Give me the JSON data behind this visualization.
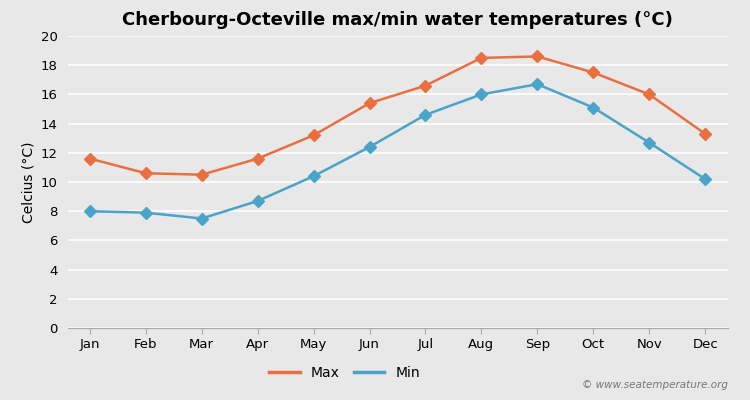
{
  "title": "Cherbourg-Octeville max/min water temperatures (°C)",
  "ylabel": "Celcius (°C)",
  "months": [
    "Jan",
    "Feb",
    "Mar",
    "Apr",
    "May",
    "Jun",
    "Jul",
    "Aug",
    "Sep",
    "Oct",
    "Nov",
    "Dec"
  ],
  "max_temps": [
    11.6,
    10.6,
    10.5,
    11.6,
    13.2,
    15.4,
    16.6,
    18.5,
    18.6,
    17.5,
    16.0,
    13.3
  ],
  "min_temps": [
    8.0,
    7.9,
    7.5,
    8.7,
    10.4,
    12.4,
    14.6,
    16.0,
    16.7,
    15.1,
    12.7,
    10.2
  ],
  "max_color": "#e87040",
  "min_color": "#4aa3c8",
  "background_color": "#e8e8e8",
  "plot_bg_color": "#e8e8e8",
  "grid_color": "#ffffff",
  "ylim": [
    0,
    20
  ],
  "yticks": [
    0,
    2,
    4,
    6,
    8,
    10,
    12,
    14,
    16,
    18,
    20
  ],
  "watermark": "© www.seatemperature.org",
  "title_fontsize": 13,
  "label_fontsize": 10,
  "tick_fontsize": 9.5,
  "legend_fontsize": 10,
  "marker_style": "D",
  "marker_size": 6,
  "line_width": 1.8
}
